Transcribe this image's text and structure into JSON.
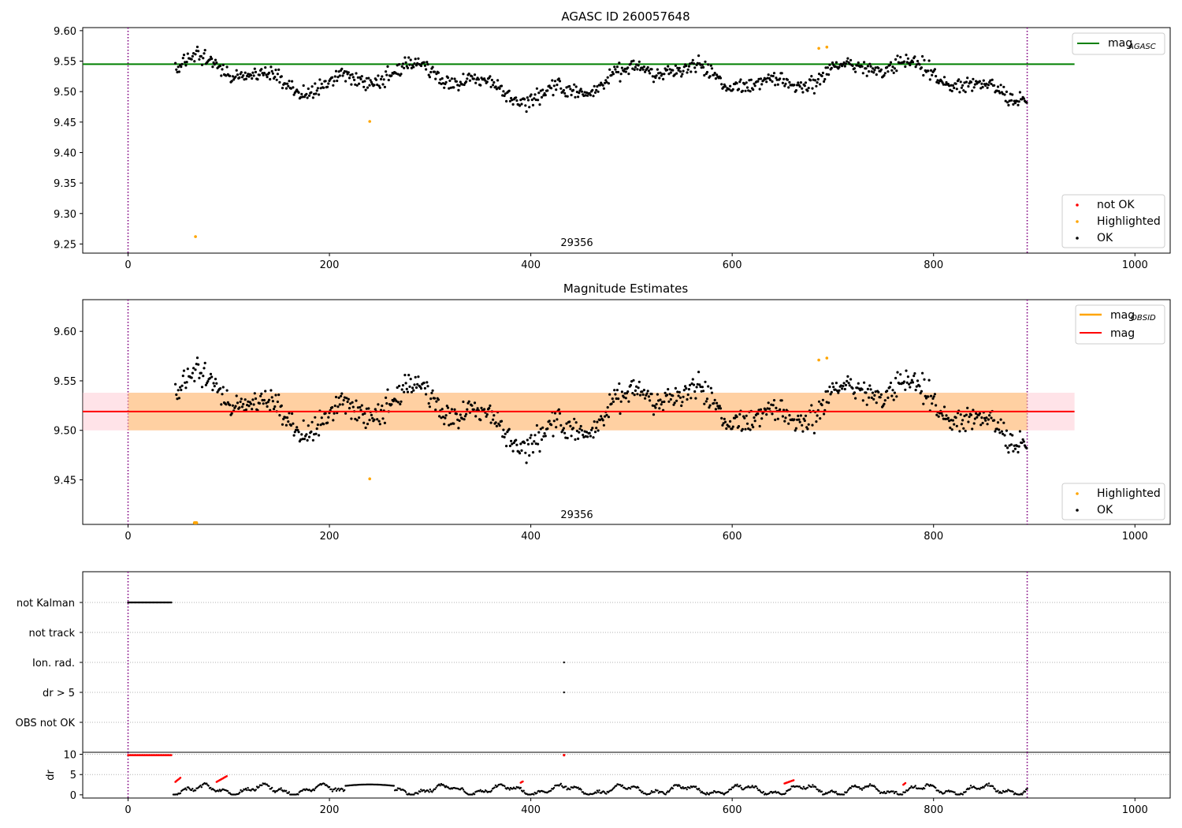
{
  "figure": {
    "title": "AGASC ID 260057648",
    "obsid_label": "29356"
  },
  "chart_data": [
    {
      "type": "scatter",
      "title": "AGASC ID 260057648",
      "xlim": [
        -45,
        1035
      ],
      "ylim": [
        9.235,
        9.605
      ],
      "xticks": [
        0,
        200,
        400,
        600,
        800,
        1000
      ],
      "yticks": [
        9.25,
        9.3,
        9.35,
        9.4,
        9.45,
        9.5,
        9.55,
        9.6
      ],
      "grid": false,
      "vlines": [
        0,
        893
      ],
      "annotation": "29356",
      "hline": {
        "name": "mag",
        "subscript": "AGASC",
        "value": 9.545,
        "x_range": [
          -45,
          940
        ],
        "color": "#008000"
      },
      "legends": {
        "upper-right": [
          {
            "name": "mag",
            "subscript": "AGASC",
            "color": "#008000"
          }
        ],
        "lower-right": [
          {
            "name": "not OK",
            "color": "#ff0000"
          },
          {
            "name": "Highlighted",
            "color": "#ffa500"
          },
          {
            "name": "OK",
            "color": "#000000"
          }
        ]
      },
      "highlighted": [
        [
          67,
          9.262
        ],
        [
          240,
          9.451
        ],
        [
          686,
          9.571
        ],
        [
          694,
          9.573
        ]
      ],
      "ok_series": {
        "x_range": [
          45,
          893
        ],
        "mean": 9.52
      }
    },
    {
      "type": "scatter",
      "title": "Magnitude Estimates",
      "xlim": [
        -45,
        1035
      ],
      "ylim": [
        9.405,
        9.632
      ],
      "xticks": [
        0,
        200,
        400,
        600,
        800,
        1000
      ],
      "yticks": [
        9.45,
        9.5,
        9.55,
        9.6
      ],
      "grid": false,
      "vlines": [
        0,
        893
      ],
      "annotation": "29356",
      "mag_line": {
        "name": "mag",
        "value": 9.519,
        "x_range": [
          -45,
          940
        ],
        "color": "#ff0000"
      },
      "mag_band": {
        "lower": 9.5,
        "upper": 9.538,
        "color": "#ffc0cb"
      },
      "mag_obsid_band": {
        "name": "mag",
        "subscript": "OBSID",
        "lower": 9.5,
        "upper": 9.538,
        "color": "#ffa500"
      },
      "legends": {
        "upper-right": [
          {
            "name": "mag",
            "subscript": "OBSID",
            "color": "#ffa500"
          },
          {
            "name": "mag",
            "color": "#ff0000"
          }
        ],
        "lower-right": [
          {
            "name": "Highlighted",
            "color": "#ffa500"
          },
          {
            "name": "OK",
            "color": "#000000"
          }
        ]
      },
      "highlighted": [
        [
          240,
          9.451
        ],
        [
          686,
          9.571
        ],
        [
          694,
          9.573
        ]
      ],
      "clipped_highlighted_x": [
        66,
        67,
        68
      ]
    },
    {
      "type": "scatter",
      "title": "",
      "xlim": [
        -45,
        1035
      ],
      "xticks": [
        0,
        200,
        400,
        600,
        800,
        1000
      ],
      "categories": [
        "not Kalman",
        "not track",
        "Ion. rad.",
        "dr > 5",
        "OBS not OK"
      ],
      "grid": true,
      "vlines": [
        0,
        893
      ],
      "flags": {
        "not Kalman": {
          "x_range": [
            0,
            43
          ]
        },
        "Ion. rad.": {
          "x": [
            433
          ]
        },
        "dr > 5": {
          "x": [
            433
          ]
        }
      }
    },
    {
      "type": "scatter",
      "title": "",
      "ylabel": "dr",
      "xlim": [
        -45,
        1035
      ],
      "ylim": [
        -0.8,
        10.5
      ],
      "xticks": [
        0,
        200,
        400,
        600,
        800,
        1000
      ],
      "yticks": [
        0,
        5,
        10
      ],
      "grid": true,
      "vlines": [
        0,
        893
      ],
      "high_dr": {
        "x_range": [
          0,
          43
        ],
        "value": 9.8
      },
      "high_dr_points": [
        [
          433,
          9.8
        ]
      ],
      "red_segments": [
        [
          47,
          52,
          3.2,
          4.2
        ],
        [
          88,
          98,
          3.2,
          4.6
        ],
        [
          390,
          392,
          3.0,
          3.3
        ],
        [
          652,
          661,
          2.8,
          3.6
        ],
        [
          770,
          772,
          2.5,
          2.9
        ]
      ],
      "ok_series": {
        "x_range": [
          45,
          893
        ],
        "max": 3.0
      }
    }
  ]
}
